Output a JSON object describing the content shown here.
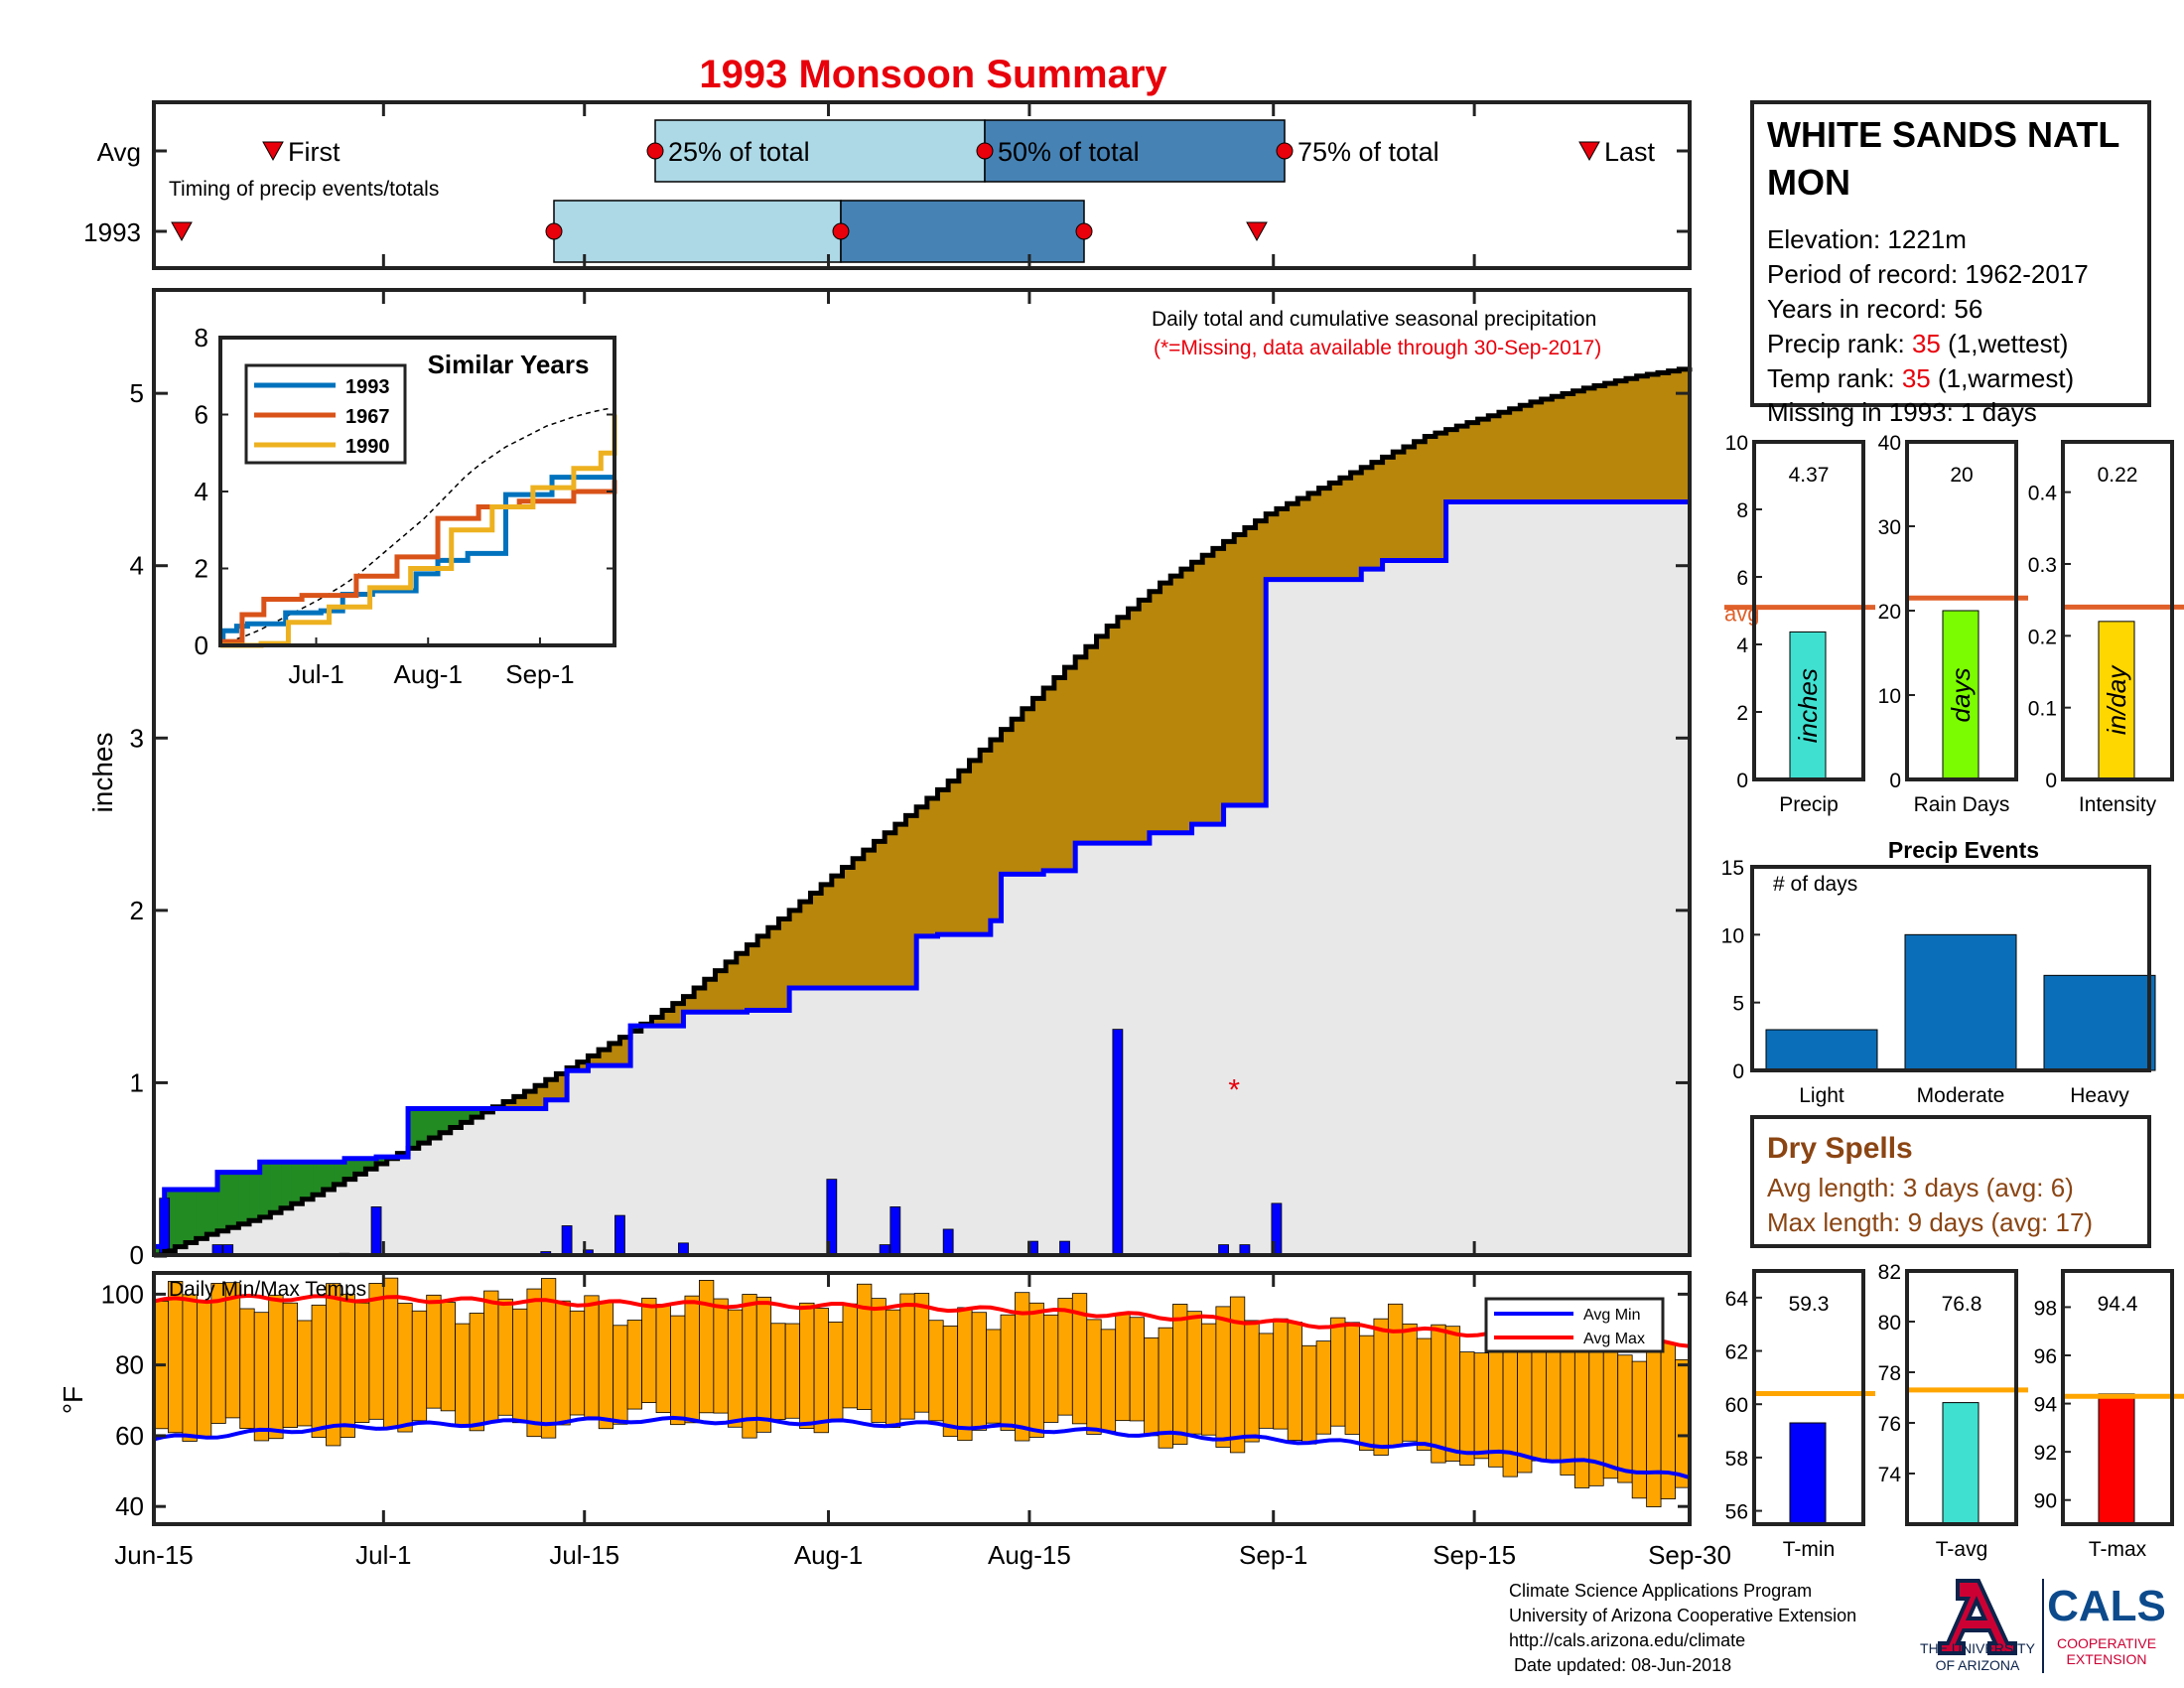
{
  "title": "1993 Monsoon Summary",
  "colors": {
    "title": "#e8000b",
    "green": "#228b22",
    "olive": "#b8860b",
    "gray_fill": "#e8e8e8",
    "blue_line": "#0000ff",
    "precip_bars": "#0000ff",
    "temp_bars": "#ffa500",
    "avg_line": "#e0602a",
    "light_blue": "#add8e6",
    "steel_blue": "#4682b4",
    "event_bars": "#0b6eb8",
    "dry": "#8b4513",
    "tavg_fill": "#40e0d0",
    "days_fill": "#7cfc00",
    "intensity_fill": "#ffd700",
    "tmax_fill": "#ff0000",
    "tavg_line": "#ffa500"
  },
  "timing": {
    "row_labels": [
      "Avg",
      "1993"
    ],
    "subtitle": "Timing of precip events/totals",
    "avg": {
      "first": "Jun-22",
      "p25": "Jul-18",
      "p50": "Aug-08",
      "p75": "Aug-27",
      "last": "Sep-25"
    },
    "y1993": {
      "first": "Jun-16",
      "p25": "Jul-11",
      "p50": "Jul-29",
      "p75": "Aug-17",
      "last": "Aug-31"
    },
    "labels": {
      "first": "First",
      "p25": "25% of total",
      "p50": "50% of total",
      "p75": "75% of total",
      "last": "Last"
    }
  },
  "info": {
    "station": [
      "WHITE SANDS NATL",
      "MON"
    ],
    "elevation": "Elevation: 1221m",
    "period": "Period of record: 1962-2017",
    "years": "Years in record: 56",
    "precip_rank_label": "Precip rank: ",
    "precip_rank": "35",
    "precip_rank_note": " (1,wettest)",
    "temp_rank_label": "Temp rank: ",
    "temp_rank": "35",
    "temp_rank_note": " (1,warmest)",
    "missing": "Missing in 1993: 1 days"
  },
  "chart_data": [
    {
      "type": "area",
      "title": "Daily total and cumulative seasonal precipitation",
      "subtitle": "(*=Missing, data available through 30-Sep-2017)",
      "ylabel": "inches",
      "ylim": [
        0,
        5.6
      ],
      "y_ticks": [
        0,
        1,
        2,
        3,
        4,
        5
      ],
      "x_tick_labels": [
        "Jun-15",
        "Jul-1",
        "Jul-15",
        "Aug-1",
        "Aug-15",
        "Sep-1",
        "Sep-15",
        "Sep-30"
      ],
      "x_tick_days": [
        0,
        16,
        30,
        47,
        61,
        78,
        92,
        107
      ],
      "missing_marker": {
        "day": 102,
        "value": 1.0,
        "label": "*"
      },
      "cumulative_1993_steps": [
        [
          0,
          0.05
        ],
        [
          1,
          0.38
        ],
        [
          6,
          0.48
        ],
        [
          10,
          0.54
        ],
        [
          18,
          0.56
        ],
        [
          21,
          0.57
        ],
        [
          24,
          0.85
        ],
        [
          37,
          0.9
        ],
        [
          39,
          1.07
        ],
        [
          41,
          1.1
        ],
        [
          45,
          1.33
        ],
        [
          50,
          1.41
        ],
        [
          56,
          1.42
        ],
        [
          60,
          1.55
        ],
        [
          67,
          1.55
        ],
        [
          72,
          1.85
        ],
        [
          74,
          1.86
        ],
        [
          79,
          1.94
        ],
        [
          80,
          2.21
        ],
        [
          84,
          2.23
        ],
        [
          87,
          2.39
        ],
        [
          91,
          2.39
        ],
        [
          94,
          2.45
        ],
        [
          98,
          2.5
        ],
        [
          101,
          2.61
        ],
        [
          105,
          3.92
        ],
        [
          114,
          3.98
        ],
        [
          116,
          4.03
        ],
        [
          122,
          4.37
        ],
        [
          145,
          4.37
        ]
      ],
      "avg_cumulative": [
        [
          0,
          0.0
        ],
        [
          5,
          0.12
        ],
        [
          10,
          0.22
        ],
        [
          15,
          0.35
        ],
        [
          20,
          0.5
        ],
        [
          25,
          0.65
        ],
        [
          30,
          0.8
        ],
        [
          35,
          0.95
        ],
        [
          40,
          1.12
        ],
        [
          45,
          1.3
        ],
        [
          50,
          1.5
        ],
        [
          55,
          1.75
        ],
        [
          60,
          2.0
        ],
        [
          65,
          2.25
        ],
        [
          70,
          2.5
        ],
        [
          75,
          2.75
        ],
        [
          80,
          3.05
        ],
        [
          85,
          3.35
        ],
        [
          90,
          3.65
        ],
        [
          95,
          3.9
        ],
        [
          100,
          4.1
        ],
        [
          105,
          4.3
        ],
        [
          110,
          4.45
        ],
        [
          115,
          4.6
        ],
        [
          120,
          4.75
        ],
        [
          125,
          4.85
        ],
        [
          130,
          4.95
        ],
        [
          135,
          5.03
        ],
        [
          140,
          5.1
        ],
        [
          145,
          5.15
        ]
      ],
      "daily_precip": [
        [
          1,
          0.33
        ],
        [
          6,
          0.06
        ],
        [
          7,
          0.06
        ],
        [
          18,
          0.01
        ],
        [
          21,
          0.28
        ],
        [
          37,
          0.02
        ],
        [
          39,
          0.17
        ],
        [
          41,
          0.03
        ],
        [
          44,
          0.23
        ],
        [
          50,
          0.07
        ],
        [
          64,
          0.44
        ],
        [
          69,
          0.06
        ],
        [
          70,
          0.28
        ],
        [
          75,
          0.15
        ],
        [
          83,
          0.08
        ],
        [
          86,
          0.08
        ],
        [
          91,
          1.31
        ],
        [
          101,
          0.06
        ],
        [
          103,
          0.06
        ],
        [
          106,
          0.3
        ]
      ]
    },
    {
      "type": "line",
      "title": "Similar Years",
      "x_tick_labels": [
        "Jul-1",
        "Aug-1",
        "Sep-1"
      ],
      "ylim": [
        0,
        8
      ],
      "y_ticks": [
        0,
        2,
        4,
        6,
        8
      ],
      "series": [
        {
          "name": "1993",
          "color": "#0072bd",
          "values": [
            [
              0,
              0.05
            ],
            [
              1,
              0.38
            ],
            [
              6,
              0.5
            ],
            [
              10,
              0.56
            ],
            [
              24,
              0.85
            ],
            [
              37,
              0.9
            ],
            [
              45,
              1.33
            ],
            [
              56,
              1.42
            ],
            [
              72,
              1.86
            ],
            [
              80,
              2.21
            ],
            [
              91,
              2.39
            ],
            [
              105,
              3.92
            ],
            [
              122,
              4.37
            ],
            [
              145,
              4.37
            ]
          ]
        },
        {
          "name": "1967",
          "color": "#d95319",
          "values": [
            [
              0,
              0.1
            ],
            [
              8,
              0.8
            ],
            [
              16,
              1.2
            ],
            [
              30,
              1.3
            ],
            [
              50,
              1.8
            ],
            [
              65,
              2.3
            ],
            [
              80,
              3.3
            ],
            [
              95,
              3.6
            ],
            [
              110,
              3.75
            ],
            [
              130,
              4.0
            ],
            [
              145,
              4.3
            ]
          ]
        },
        {
          "name": "1990",
          "color": "#edb120",
          "values": [
            [
              0,
              0.0
            ],
            [
              15,
              0.05
            ],
            [
              25,
              0.6
            ],
            [
              40,
              1.0
            ],
            [
              55,
              1.5
            ],
            [
              70,
              2.0
            ],
            [
              85,
              3.0
            ],
            [
              100,
              3.6
            ],
            [
              115,
              4.1
            ],
            [
              130,
              4.6
            ],
            [
              140,
              5.0
            ],
            [
              145,
              6.0
            ]
          ]
        }
      ]
    },
    {
      "type": "bar",
      "title": "Precip",
      "value_label": "4.37",
      "ylim": [
        0,
        10
      ],
      "y_ticks": [
        0,
        2,
        4,
        6,
        8,
        10
      ],
      "values": [
        4.37
      ],
      "avg": 5.1,
      "avg_label": "avg",
      "bar_label": "inches"
    },
    {
      "type": "bar",
      "title": "Rain Days",
      "value_label": "20",
      "ylim": [
        0,
        40
      ],
      "y_ticks": [
        0,
        10,
        20,
        30,
        40
      ],
      "values": [
        20
      ],
      "avg": 21.5,
      "bar_label": "days"
    },
    {
      "type": "bar",
      "title": "Intensity",
      "value_label": "0.22",
      "ylim": [
        0,
        0.47
      ],
      "y_ticks": [
        0,
        0.1,
        0.2,
        0.3,
        0.4
      ],
      "values": [
        0.22
      ],
      "avg": 0.24,
      "bar_label": "in/day"
    },
    {
      "type": "bar",
      "title": "Precip Events",
      "ylabel": "# of days",
      "categories": [
        "Light",
        "Moderate",
        "Heavy"
      ],
      "values": [
        3,
        10,
        7
      ],
      "ylim": [
        0,
        15
      ],
      "y_ticks": [
        0,
        5,
        10,
        15
      ]
    },
    {
      "type": "bar",
      "title": "Daily Min/Max Temps",
      "ylabel": "°F",
      "ylim": [
        35,
        106
      ],
      "y_ticks": [
        40,
        60,
        80,
        100
      ],
      "legend": [
        "Avg Min",
        "Avg Max"
      ],
      "avg_max": [
        [
          0,
          98
        ],
        [
          10,
          99
        ],
        [
          25,
          98.5
        ],
        [
          40,
          97.5
        ],
        [
          55,
          97
        ],
        [
          70,
          96.5
        ],
        [
          85,
          95
        ],
        [
          100,
          93
        ],
        [
          115,
          90.5
        ],
        [
          130,
          88
        ],
        [
          145,
          86
        ]
      ],
      "avg_min": [
        [
          0,
          59
        ],
        [
          15,
          62
        ],
        [
          30,
          63.5
        ],
        [
          45,
          64.5
        ],
        [
          60,
          64
        ],
        [
          75,
          63
        ],
        [
          90,
          61
        ],
        [
          105,
          59
        ],
        [
          120,
          57
        ],
        [
          135,
          52.5
        ],
        [
          145,
          48
        ]
      ],
      "daily_minmax_note": "orange bars span daily min to max temperature"
    },
    {
      "type": "bar",
      "title": "T-min",
      "value_label": "59.3",
      "ylim": [
        55.5,
        65
      ],
      "y_ticks": [
        56,
        58,
        60,
        62,
        64
      ],
      "values": [
        59.3
      ],
      "avg": 60.4
    },
    {
      "type": "bar",
      "title": "T-avg",
      "value_label": "76.8",
      "ylim": [
        72,
        82
      ],
      "y_ticks": [
        74,
        76,
        78,
        80,
        82
      ],
      "values": [
        76.8
      ],
      "avg": 77.3
    },
    {
      "type": "bar",
      "title": "T-max",
      "value_label": "94.4",
      "ylim": [
        89,
        99.5
      ],
      "y_ticks": [
        90,
        92,
        94,
        96,
        98
      ],
      "values": [
        94.4
      ],
      "avg": 94.3
    }
  ],
  "dry_spells": {
    "title": "Dry Spells",
    "avg": "Avg length: 3 days (avg: 6)",
    "max": "Max length: 9 days (avg: 17)"
  },
  "footer": {
    "lines": [
      "Climate Science Applications Program",
      "University of Arizona Cooperative Extension",
      "http://cals.arizona.edu/climate",
      " Date updated: 08-Jun-2018"
    ],
    "logo_ua": [
      "THE UNIVERSITY",
      "OF ARIZONA"
    ],
    "logo_cals": "CALS",
    "logo_cals_sub": [
      "COOPERATIVE",
      "EXTENSION"
    ]
  }
}
